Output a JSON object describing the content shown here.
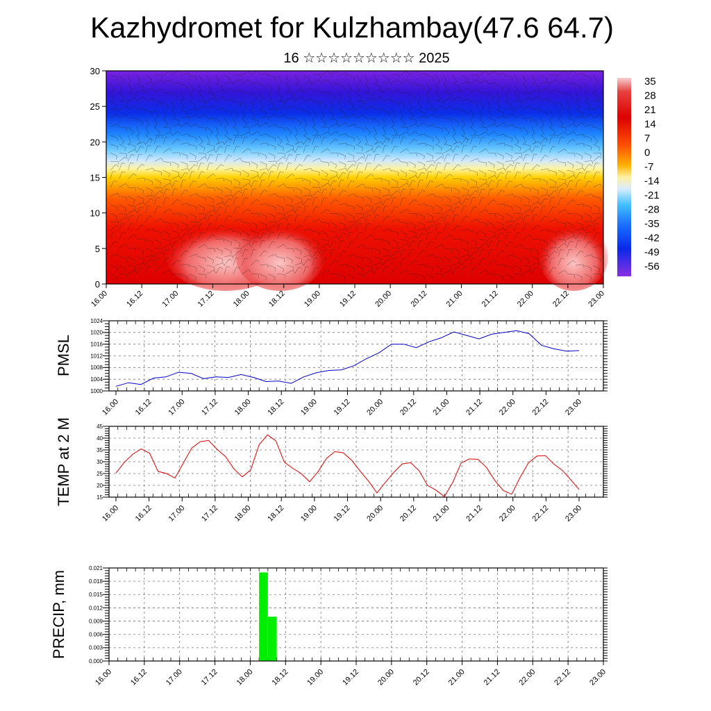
{
  "header": {
    "title": "Kazhydromet for Kulzhambay(47.6 64.7)",
    "subtitle": "16 ☆☆☆☆☆☆☆☆☆ 2025"
  },
  "colors": {
    "pressure_line": "#0000cc",
    "temperature_line": "#dd0000",
    "precip_bar": "#00ee00"
  },
  "time_ticks": [
    "16.00",
    "16.12",
    "17.00",
    "17.12",
    "18.00",
    "18.12",
    "19.00",
    "19.12",
    "20.00",
    "20.12",
    "21.00",
    "21.12",
    "22.00",
    "22.12",
    "23.00"
  ],
  "chart_data": [
    {
      "type": "heatmap",
      "title": "",
      "xlabel": "",
      "ylabel": "",
      "xlim": [
        "16.00",
        "23.00"
      ],
      "ylim": [
        0,
        30
      ],
      "yticks": [
        0,
        5,
        10,
        15,
        20,
        25,
        30
      ],
      "colorbar": {
        "labels": [
          "35",
          "28",
          "21",
          "14",
          "7",
          "0",
          "-7",
          "-14",
          "-21",
          "-28",
          "-35",
          "-42",
          "-49",
          "-56"
        ],
        "placement": "right"
      },
      "description_overlay": "wind barbs",
      "temperature_by_height": [
        {
          "height": 0,
          "value": 21
        },
        {
          "height": 5,
          "value": 21
        },
        {
          "height": 10,
          "value": 18
        },
        {
          "height": 13,
          "value": 7
        },
        {
          "height": 15,
          "value": -7
        },
        {
          "height": 17,
          "value": -14
        },
        {
          "height": 19,
          "value": -28
        },
        {
          "height": 22,
          "value": -42
        },
        {
          "height": 26,
          "value": -56
        },
        {
          "height": 30,
          "value": -56
        }
      ]
    },
    {
      "type": "line",
      "title": "",
      "ylabel": "PMSL",
      "ylim": [
        1000,
        1024
      ],
      "yticks": [
        1000,
        1004,
        1008,
        1012,
        1016,
        1020,
        1024
      ],
      "x_step_hours": 3,
      "series": [
        {
          "values": [
            1001.6,
            1002.8,
            1002.2,
            1004.4,
            1004.8,
            1006.4,
            1006.0,
            1004.2,
            1004.8,
            1004.6,
            1005.6,
            1004.6,
            1003.2,
            1003.4,
            1002.6,
            1004.8,
            1006.2,
            1007.0,
            1007.2,
            1008.6,
            1011.0,
            1013.0,
            1016.0,
            1016.0,
            1014.8,
            1016.8,
            1018.2,
            1020.2,
            1019.0,
            1017.8,
            1019.4,
            1020.0,
            1020.6,
            1019.6,
            1015.6,
            1014.4,
            1013.6,
            1013.8
          ]
        }
      ],
      "grid": true
    },
    {
      "type": "line",
      "title": "",
      "ylabel": "TEMP at 2 M",
      "ylim": [
        15,
        45
      ],
      "yticks": [
        15,
        20,
        25,
        30,
        35,
        40,
        45
      ],
      "x_step_hours": 3,
      "series": [
        {
          "values": [
            25.2,
            29.8,
            33.2,
            35.4,
            33.6,
            25.9,
            25.0,
            23.1,
            29.4,
            35.8,
            38.5,
            39.0,
            35.3,
            32.2,
            27.0,
            23.6,
            26.5,
            37.2,
            41.4,
            38.8,
            29.8,
            27.2,
            25.0,
            21.5,
            25.8,
            31.4,
            34.3,
            33.8,
            30.6,
            26.0,
            21.8,
            16.8,
            21.3,
            25.5,
            29.1,
            29.6,
            26.2,
            20.0,
            18.0,
            15.2,
            21.3,
            29.5,
            31.2,
            31.0,
            27.6,
            22.0,
            17.8,
            16.2,
            23.4,
            29.6,
            32.4,
            32.6,
            29.0,
            26.4,
            22.4,
            18.2
          ]
        }
      ],
      "grid": true
    },
    {
      "type": "bar",
      "title": "",
      "ylabel": "PRECIP, mm",
      "ylim": [
        0,
        0.021
      ],
      "yticks": [
        "0.000",
        "0.003",
        "0.006",
        "0.009",
        "0.012",
        "0.015",
        "0.018",
        "0.021"
      ],
      "bars": [
        {
          "start": "18.03",
          "end": "18.06",
          "value": 0.02
        },
        {
          "start": "18.06",
          "end": "18.09",
          "value": 0.01
        }
      ],
      "grid": true
    }
  ]
}
